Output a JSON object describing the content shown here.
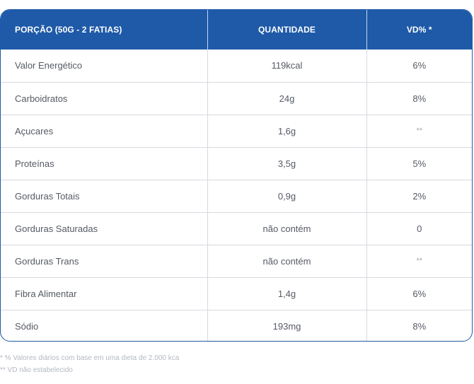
{
  "table": {
    "headers": {
      "portion": "PORÇÃO (50G - 2 FATIAS)",
      "quantity": "QUANTIDADE",
      "dv": "VD% *"
    },
    "rows": [
      {
        "nutrient": "Valor Energético",
        "quantity": "119kcal",
        "dv": "6%"
      },
      {
        "nutrient": "Carboidratos",
        "quantity": "24g",
        "dv": "8%"
      },
      {
        "nutrient": "Açucares",
        "quantity": "1,6g",
        "dv": "**"
      },
      {
        "nutrient": "Proteínas",
        "quantity": "3,5g",
        "dv": "5%"
      },
      {
        "nutrient": "Gorduras Totais",
        "quantity": "0,9g",
        "dv": "2%"
      },
      {
        "nutrient": "Gorduras Saturadas",
        "quantity": "não contém",
        "dv": "0"
      },
      {
        "nutrient": "Gorduras Trans",
        "quantity": "não contém",
        "dv": "**"
      },
      {
        "nutrient": "Fibra Alimentar",
        "quantity": "1,4g",
        "dv": "6%"
      },
      {
        "nutrient": "Sódio",
        "quantity": "193mg",
        "dv": "8%"
      }
    ]
  },
  "footnotes": {
    "dv_note": "* % Valores diários com base em uma dieta de 2.000 kca",
    "na_note": "** VD não estabelecido"
  },
  "colors": {
    "header_bg": "#1e5aa8",
    "border": "#1e5aa8",
    "grid": "#d5d9df",
    "text": "#555a63"
  }
}
